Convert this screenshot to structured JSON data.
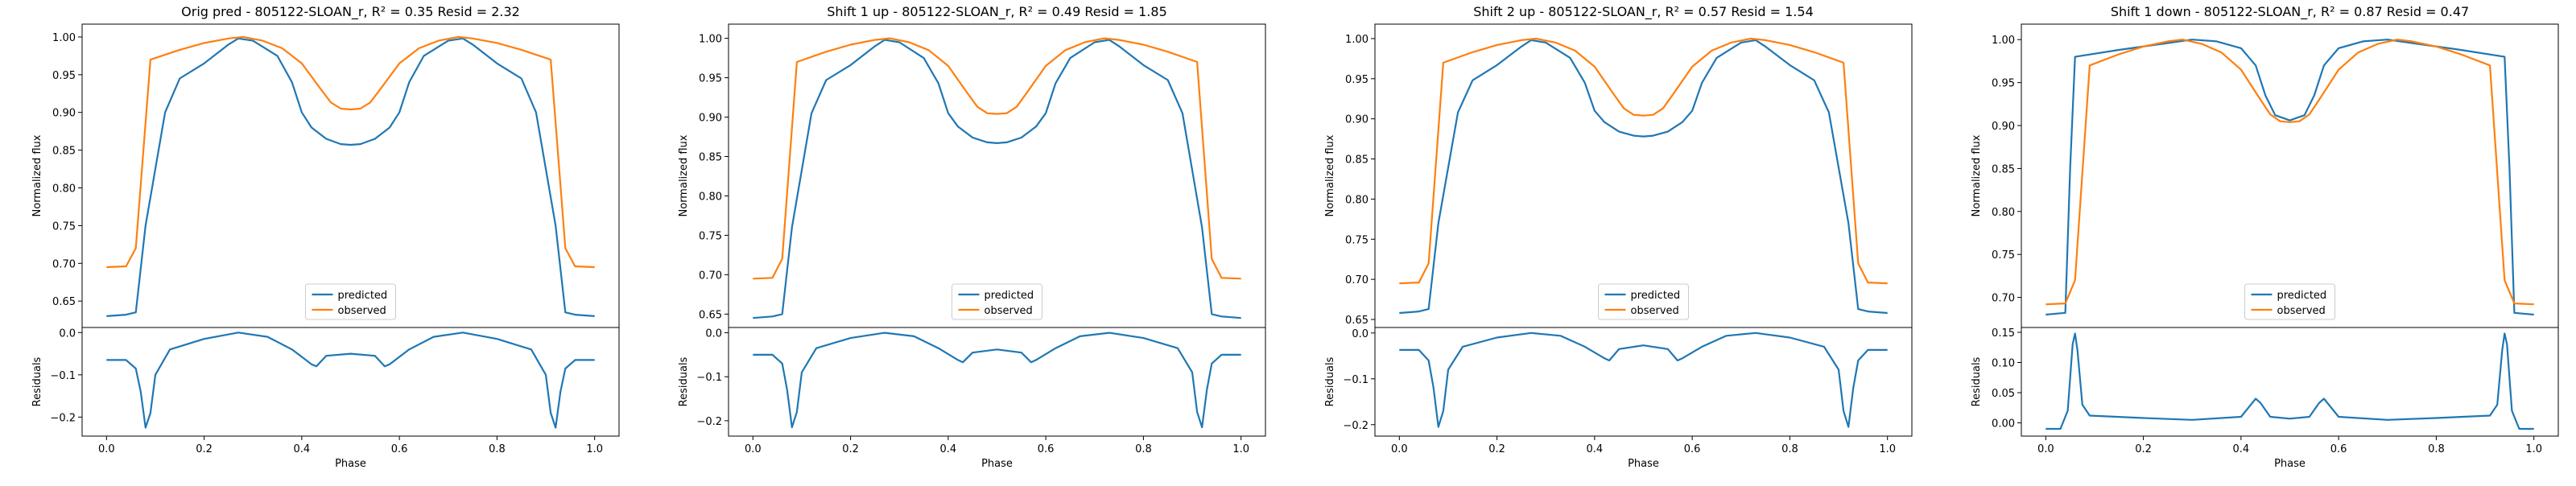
{
  "colors": {
    "predicted": "#1f77b4",
    "observed": "#ff7f0e",
    "axes": "#000000",
    "background": "#ffffff"
  },
  "legend_labels": {
    "predicted": "predicted",
    "observed": "observed"
  },
  "chart_data": [
    {
      "type": "line",
      "title": "Orig pred - 805122-SLOAN_r, R² = 0.35 Resid = 2.32",
      "ylabel": "Normalized flux",
      "xlabel": "Phase",
      "residual_ylabel": "Residuals",
      "legend_position": "lower center",
      "grid": false,
      "xlim": [
        -0.05,
        1.05
      ],
      "xticks": [
        0.0,
        0.2,
        0.4,
        0.6,
        0.8,
        1.0
      ],
      "xtick_labels": [
        "0.0",
        "0.2",
        "0.4",
        "0.6",
        "0.8",
        "1.0"
      ],
      "ylim": [
        0.615,
        1.017
      ],
      "yticks": [
        0.65,
        0.7,
        0.75,
        0.8,
        0.85,
        0.9,
        0.95,
        1.0
      ],
      "ytick_labels": [
        "0.65",
        "0.70",
        "0.75",
        "0.80",
        "0.85",
        "0.90",
        "0.95",
        "1.00"
      ],
      "residual_ylim": [
        -0.245,
        0.012
      ],
      "residual_yticks": [
        -0.2,
        -0.1,
        0.0
      ],
      "residual_ytick_labels": [
        "−0.2",
        "−0.1",
        "0.0"
      ],
      "series": [
        {
          "name": "predicted",
          "x": [
            0.0,
            0.04,
            0.06,
            0.08,
            0.12,
            0.15,
            0.2,
            0.25,
            0.27,
            0.3,
            0.35,
            0.38,
            0.4,
            0.42,
            0.45,
            0.48,
            0.5,
            0.52,
            0.55,
            0.58,
            0.6,
            0.62,
            0.65,
            0.7,
            0.73,
            0.75,
            0.8,
            0.85,
            0.88,
            0.92,
            0.94,
            0.96,
            1.0
          ],
          "y": [
            0.63,
            0.632,
            0.635,
            0.75,
            0.9,
            0.945,
            0.965,
            0.99,
            0.998,
            0.995,
            0.975,
            0.94,
            0.9,
            0.88,
            0.865,
            0.858,
            0.857,
            0.858,
            0.865,
            0.88,
            0.9,
            0.94,
            0.975,
            0.995,
            0.998,
            0.99,
            0.965,
            0.945,
            0.9,
            0.75,
            0.635,
            0.632,
            0.63
          ]
        },
        {
          "name": "observed",
          "x": [
            0.0,
            0.04,
            0.06,
            0.09,
            0.15,
            0.2,
            0.25,
            0.28,
            0.32,
            0.36,
            0.4,
            0.44,
            0.46,
            0.48,
            0.5,
            0.52,
            0.54,
            0.56,
            0.6,
            0.64,
            0.68,
            0.72,
            0.75,
            0.8,
            0.85,
            0.91,
            0.94,
            0.96,
            1.0
          ],
          "y": [
            0.695,
            0.696,
            0.72,
            0.97,
            0.983,
            0.992,
            0.998,
            1.0,
            0.995,
            0.985,
            0.965,
            0.93,
            0.913,
            0.905,
            0.904,
            0.905,
            0.913,
            0.93,
            0.965,
            0.985,
            0.995,
            1.0,
            0.998,
            0.992,
            0.983,
            0.97,
            0.72,
            0.696,
            0.695
          ]
        }
      ],
      "residuals": {
        "x": [
          0.0,
          0.04,
          0.06,
          0.07,
          0.08,
          0.09,
          0.1,
          0.13,
          0.2,
          0.27,
          0.33,
          0.38,
          0.42,
          0.43,
          0.45,
          0.5,
          0.55,
          0.57,
          0.58,
          0.62,
          0.67,
          0.73,
          0.8,
          0.87,
          0.9,
          0.91,
          0.92,
          0.93,
          0.94,
          0.96,
          1.0
        ],
        "y": [
          -0.065,
          -0.065,
          -0.085,
          -0.14,
          -0.225,
          -0.19,
          -0.1,
          -0.04,
          -0.015,
          0.0,
          -0.01,
          -0.04,
          -0.075,
          -0.08,
          -0.055,
          -0.05,
          -0.055,
          -0.08,
          -0.075,
          -0.04,
          -0.01,
          0.0,
          -0.015,
          -0.04,
          -0.1,
          -0.19,
          -0.225,
          -0.14,
          -0.085,
          -0.065,
          -0.065
        ]
      }
    },
    {
      "type": "line",
      "title": "Shift 1 up - 805122-SLOAN_r, R² = 0.49 Resid = 1.85",
      "ylabel": "Normalized flux",
      "xlabel": "Phase",
      "residual_ylabel": "Residuals",
      "legend_position": "lower center",
      "grid": false,
      "xlim": [
        -0.05,
        1.05
      ],
      "xticks": [
        0.0,
        0.2,
        0.4,
        0.6,
        0.8,
        1.0
      ],
      "xtick_labels": [
        "0.0",
        "0.2",
        "0.4",
        "0.6",
        "0.8",
        "1.0"
      ],
      "ylim": [
        0.633,
        1.018
      ],
      "yticks": [
        0.65,
        0.7,
        0.75,
        0.8,
        0.85,
        0.9,
        0.95,
        1.0
      ],
      "ytick_labels": [
        "0.65",
        "0.70",
        "0.75",
        "0.80",
        "0.85",
        "0.90",
        "0.95",
        "1.00"
      ],
      "residual_ylim": [
        -0.235,
        0.012
      ],
      "residual_yticks": [
        -0.2,
        -0.1,
        0.0
      ],
      "residual_ytick_labels": [
        "−0.2",
        "−0.1",
        "0.0"
      ],
      "series": [
        {
          "name": "predicted",
          "x": [
            0.0,
            0.04,
            0.06,
            0.08,
            0.12,
            0.15,
            0.2,
            0.25,
            0.27,
            0.3,
            0.35,
            0.38,
            0.4,
            0.42,
            0.45,
            0.48,
            0.5,
            0.52,
            0.55,
            0.58,
            0.6,
            0.62,
            0.65,
            0.7,
            0.73,
            0.75,
            0.8,
            0.85,
            0.88,
            0.92,
            0.94,
            0.96,
            1.0
          ],
          "y": [
            0.645,
            0.647,
            0.65,
            0.76,
            0.905,
            0.947,
            0.966,
            0.99,
            0.998,
            0.995,
            0.975,
            0.943,
            0.905,
            0.888,
            0.874,
            0.868,
            0.867,
            0.868,
            0.874,
            0.888,
            0.905,
            0.943,
            0.975,
            0.995,
            0.998,
            0.99,
            0.966,
            0.947,
            0.905,
            0.76,
            0.65,
            0.647,
            0.645
          ]
        },
        {
          "name": "observed",
          "x": [
            0.0,
            0.04,
            0.06,
            0.09,
            0.15,
            0.2,
            0.25,
            0.28,
            0.32,
            0.36,
            0.4,
            0.44,
            0.46,
            0.48,
            0.5,
            0.52,
            0.54,
            0.56,
            0.6,
            0.64,
            0.68,
            0.72,
            0.75,
            0.8,
            0.85,
            0.91,
            0.94,
            0.96,
            1.0
          ],
          "y": [
            0.695,
            0.696,
            0.72,
            0.97,
            0.983,
            0.992,
            0.998,
            1.0,
            0.995,
            0.985,
            0.965,
            0.93,
            0.913,
            0.905,
            0.904,
            0.905,
            0.913,
            0.93,
            0.965,
            0.985,
            0.995,
            1.0,
            0.998,
            0.992,
            0.983,
            0.97,
            0.72,
            0.696,
            0.695
          ]
        }
      ],
      "residuals": {
        "x": [
          0.0,
          0.04,
          0.06,
          0.07,
          0.08,
          0.09,
          0.1,
          0.13,
          0.2,
          0.27,
          0.33,
          0.38,
          0.42,
          0.43,
          0.45,
          0.5,
          0.55,
          0.57,
          0.58,
          0.62,
          0.67,
          0.73,
          0.8,
          0.87,
          0.9,
          0.91,
          0.92,
          0.93,
          0.94,
          0.96,
          1.0
        ],
        "y": [
          -0.05,
          -0.05,
          -0.07,
          -0.13,
          -0.215,
          -0.18,
          -0.09,
          -0.035,
          -0.012,
          0.0,
          -0.008,
          -0.035,
          -0.062,
          -0.067,
          -0.045,
          -0.038,
          -0.045,
          -0.067,
          -0.062,
          -0.035,
          -0.008,
          0.0,
          -0.012,
          -0.035,
          -0.09,
          -0.18,
          -0.215,
          -0.13,
          -0.07,
          -0.05,
          -0.05
        ]
      }
    },
    {
      "type": "line",
      "title": "Shift 2 up - 805122-SLOAN_r, R² = 0.57 Resid = 1.54",
      "ylabel": "Normalized flux",
      "xlabel": "Phase",
      "residual_ylabel": "Residuals",
      "legend_position": "lower center",
      "grid": false,
      "xlim": [
        -0.05,
        1.05
      ],
      "xticks": [
        0.0,
        0.2,
        0.4,
        0.6,
        0.8,
        1.0
      ],
      "xtick_labels": [
        "0.0",
        "0.2",
        "0.4",
        "0.6",
        "0.8",
        "1.0"
      ],
      "ylim": [
        0.64,
        1.018
      ],
      "yticks": [
        0.65,
        0.7,
        0.75,
        0.8,
        0.85,
        0.9,
        0.95,
        1.0
      ],
      "ytick_labels": [
        "0.65",
        "0.70",
        "0.75",
        "0.80",
        "0.85",
        "0.90",
        "0.95",
        "1.00"
      ],
      "residual_ylim": [
        -0.225,
        0.012
      ],
      "residual_yticks": [
        -0.2,
        -0.1,
        0.0
      ],
      "residual_ytick_labels": [
        "−0.2",
        "−0.1",
        "0.0"
      ],
      "series": [
        {
          "name": "predicted",
          "x": [
            0.0,
            0.04,
            0.06,
            0.08,
            0.12,
            0.15,
            0.2,
            0.25,
            0.27,
            0.3,
            0.35,
            0.38,
            0.4,
            0.42,
            0.45,
            0.48,
            0.5,
            0.52,
            0.55,
            0.58,
            0.6,
            0.62,
            0.65,
            0.7,
            0.73,
            0.75,
            0.8,
            0.85,
            0.88,
            0.92,
            0.94,
            0.96,
            1.0
          ],
          "y": [
            0.658,
            0.66,
            0.663,
            0.77,
            0.908,
            0.948,
            0.967,
            0.99,
            0.998,
            0.995,
            0.976,
            0.945,
            0.91,
            0.896,
            0.884,
            0.879,
            0.878,
            0.879,
            0.884,
            0.896,
            0.91,
            0.945,
            0.976,
            0.995,
            0.998,
            0.99,
            0.967,
            0.948,
            0.908,
            0.77,
            0.663,
            0.66,
            0.658
          ]
        },
        {
          "name": "observed",
          "x": [
            0.0,
            0.04,
            0.06,
            0.09,
            0.15,
            0.2,
            0.25,
            0.28,
            0.32,
            0.36,
            0.4,
            0.44,
            0.46,
            0.48,
            0.5,
            0.52,
            0.54,
            0.56,
            0.6,
            0.64,
            0.68,
            0.72,
            0.75,
            0.8,
            0.85,
            0.91,
            0.94,
            0.96,
            1.0
          ],
          "y": [
            0.695,
            0.696,
            0.72,
            0.97,
            0.983,
            0.992,
            0.998,
            1.0,
            0.995,
            0.985,
            0.965,
            0.93,
            0.913,
            0.905,
            0.904,
            0.905,
            0.913,
            0.93,
            0.965,
            0.985,
            0.995,
            1.0,
            0.998,
            0.992,
            0.983,
            0.97,
            0.72,
            0.696,
            0.695
          ]
        }
      ],
      "residuals": {
        "x": [
          0.0,
          0.04,
          0.06,
          0.07,
          0.08,
          0.09,
          0.1,
          0.13,
          0.2,
          0.27,
          0.33,
          0.38,
          0.42,
          0.43,
          0.45,
          0.5,
          0.55,
          0.57,
          0.58,
          0.62,
          0.67,
          0.73,
          0.8,
          0.87,
          0.9,
          0.91,
          0.92,
          0.93,
          0.94,
          0.96,
          1.0
        ],
        "y": [
          -0.037,
          -0.037,
          -0.06,
          -0.12,
          -0.205,
          -0.17,
          -0.08,
          -0.03,
          -0.01,
          0.0,
          -0.006,
          -0.03,
          -0.055,
          -0.06,
          -0.035,
          -0.027,
          -0.035,
          -0.06,
          -0.055,
          -0.03,
          -0.006,
          0.0,
          -0.01,
          -0.03,
          -0.08,
          -0.17,
          -0.205,
          -0.12,
          -0.06,
          -0.037,
          -0.037
        ]
      }
    },
    {
      "type": "line",
      "title": "Shift 1 down - 805122-SLOAN_r, R² = 0.87 Resid = 0.47",
      "ylabel": "Normalized flux",
      "xlabel": "Phase",
      "residual_ylabel": "Residuals",
      "legend_position": "lower center",
      "grid": false,
      "xlim": [
        -0.05,
        1.05
      ],
      "xticks": [
        0.0,
        0.2,
        0.4,
        0.6,
        0.8,
        1.0
      ],
      "xtick_labels": [
        "0.0",
        "0.2",
        "0.4",
        "0.6",
        "0.8",
        "1.0"
      ],
      "ylim": [
        0.665,
        1.018
      ],
      "yticks": [
        0.7,
        0.75,
        0.8,
        0.85,
        0.9,
        0.95,
        1.0
      ],
      "ytick_labels": [
        "0.70",
        "0.75",
        "0.80",
        "0.85",
        "0.90",
        "0.95",
        "1.00"
      ],
      "residual_ylim": [
        -0.022,
        0.158
      ],
      "residual_yticks": [
        0.0,
        0.05,
        0.1,
        0.15
      ],
      "residual_ytick_labels": [
        "0.00",
        "0.05",
        "0.10",
        "0.15"
      ],
      "series": [
        {
          "name": "predicted",
          "x": [
            0.0,
            0.04,
            0.05,
            0.06,
            0.15,
            0.25,
            0.3,
            0.35,
            0.4,
            0.43,
            0.45,
            0.47,
            0.5,
            0.53,
            0.55,
            0.57,
            0.6,
            0.65,
            0.7,
            0.75,
            0.85,
            0.94,
            0.95,
            0.96,
            1.0
          ],
          "y": [
            0.68,
            0.682,
            0.85,
            0.98,
            0.988,
            0.996,
            1.0,
            0.998,
            0.99,
            0.97,
            0.935,
            0.912,
            0.906,
            0.912,
            0.935,
            0.97,
            0.99,
            0.998,
            1.0,
            0.996,
            0.988,
            0.98,
            0.85,
            0.682,
            0.68
          ]
        },
        {
          "name": "observed",
          "x": [
            0.0,
            0.04,
            0.06,
            0.09,
            0.15,
            0.2,
            0.25,
            0.28,
            0.32,
            0.36,
            0.4,
            0.44,
            0.46,
            0.48,
            0.5,
            0.52,
            0.54,
            0.56,
            0.6,
            0.64,
            0.68,
            0.72,
            0.75,
            0.8,
            0.85,
            0.91,
            0.94,
            0.96,
            1.0
          ],
          "y": [
            0.692,
            0.693,
            0.72,
            0.97,
            0.983,
            0.992,
            0.998,
            1.0,
            0.995,
            0.985,
            0.965,
            0.93,
            0.913,
            0.905,
            0.904,
            0.905,
            0.913,
            0.93,
            0.965,
            0.985,
            0.995,
            1.0,
            0.998,
            0.992,
            0.983,
            0.97,
            0.72,
            0.693,
            0.692
          ]
        }
      ],
      "residuals": {
        "x": [
          0.0,
          0.03,
          0.045,
          0.055,
          0.06,
          0.065,
          0.075,
          0.09,
          0.2,
          0.3,
          0.4,
          0.42,
          0.43,
          0.44,
          0.46,
          0.5,
          0.54,
          0.56,
          0.57,
          0.58,
          0.6,
          0.7,
          0.8,
          0.91,
          0.925,
          0.935,
          0.94,
          0.945,
          0.955,
          0.97,
          1.0
        ],
        "y": [
          -0.01,
          -0.01,
          0.02,
          0.13,
          0.148,
          0.12,
          0.03,
          0.012,
          0.008,
          0.005,
          0.01,
          0.03,
          0.04,
          0.033,
          0.01,
          0.007,
          0.01,
          0.033,
          0.04,
          0.03,
          0.01,
          0.005,
          0.008,
          0.012,
          0.03,
          0.12,
          0.148,
          0.13,
          0.02,
          -0.01,
          -0.01
        ]
      }
    }
  ]
}
